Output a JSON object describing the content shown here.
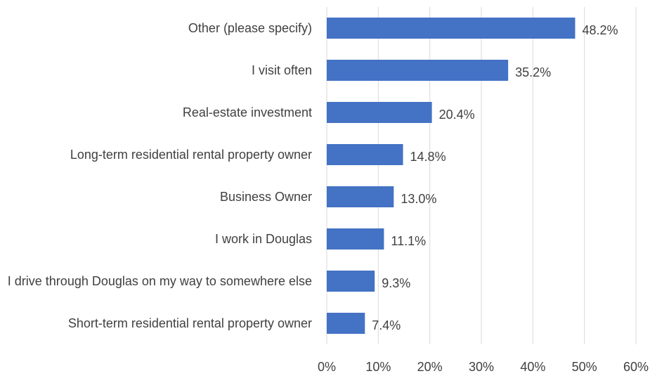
{
  "chart_data": {
    "type": "hbar",
    "categories": [
      "Other (please specify)",
      "I visit often",
      "Real-estate investment",
      "Long-term residential rental property owner",
      "Business Owner",
      "I work in Douglas",
      "I drive through Douglas on my way to somewhere else",
      "Short-term residential rental property owner"
    ],
    "values": [
      48.2,
      35.2,
      20.4,
      14.8,
      13.0,
      11.1,
      9.3,
      7.4
    ],
    "value_labels": [
      "48.2%",
      "35.2%",
      "20.4%",
      "14.8%",
      "13.0%",
      "11.1%",
      "9.3%",
      "7.4%"
    ],
    "color": "#4472c4",
    "xlim": [
      0,
      60
    ],
    "xticks": [
      {
        "value": 0,
        "label": "0%"
      },
      {
        "value": 10,
        "label": "10%"
      },
      {
        "value": 20,
        "label": "20%"
      },
      {
        "value": 30,
        "label": "30%"
      },
      {
        "value": 40,
        "label": "40%"
      },
      {
        "value": 50,
        "label": "50%"
      },
      {
        "value": 60,
        "label": "60%"
      }
    ],
    "grid": true
  }
}
